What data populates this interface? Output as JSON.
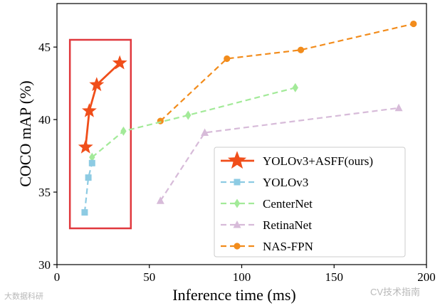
{
  "chart_data": {
    "type": "line",
    "xlabel": "Inference time (ms)",
    "ylabel": "COCO mAP (%)",
    "xlim": [
      0,
      200
    ],
    "ylim": [
      30,
      48
    ],
    "xticks": [
      0,
      50,
      100,
      150,
      200
    ],
    "yticks": [
      30,
      35,
      40,
      45
    ],
    "grid": false,
    "legend_position": "lower-right",
    "series": [
      {
        "name": "YOLOv3+ASFF(ours)",
        "color": "#f04e1a",
        "marker": "star",
        "dash": false,
        "x": [
          15.5,
          17.5,
          21.5,
          34
        ],
        "y": [
          38.1,
          40.6,
          42.4,
          43.9
        ]
      },
      {
        "name": "YOLOv3",
        "color": "#8dcbe3",
        "marker": "square",
        "dash": true,
        "x": [
          15,
          17,
          19
        ],
        "y": [
          33.6,
          36.0,
          37.0
        ]
      },
      {
        "name": "CenterNet",
        "color": "#a3ea99",
        "marker": "diamond",
        "dash": true,
        "x": [
          19,
          36,
          71,
          129
        ],
        "y": [
          37.4,
          39.2,
          40.3,
          42.2
        ]
      },
      {
        "name": "RetinaNet",
        "color": "#d7bbd9",
        "marker": "triangle",
        "dash": true,
        "x": [
          56,
          80,
          185
        ],
        "y": [
          34.4,
          39.1,
          40.8
        ]
      },
      {
        "name": "NAS-FPN",
        "color": "#f28c1c",
        "marker": "circle",
        "dash": true,
        "x": [
          56,
          92,
          132,
          193
        ],
        "y": [
          39.9,
          44.2,
          44.8,
          46.6
        ]
      }
    ],
    "highlight_box": {
      "x_range": [
        7,
        40
      ],
      "y_range": [
        32.5,
        45.5
      ],
      "color": "#e0383d"
    }
  },
  "watermarks": {
    "left": "大数据科研",
    "right": "CV技术指南"
  }
}
